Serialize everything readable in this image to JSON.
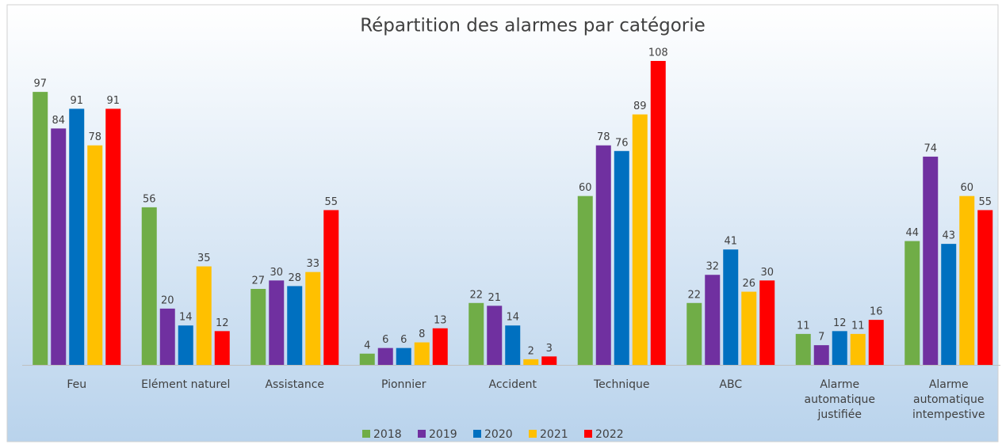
{
  "chart_data": {
    "type": "bar",
    "title": "Répartition des alarmes par catégorie",
    "categories": [
      "Feu",
      "Elément naturel",
      "Assistance",
      "Pionnier",
      "Accident",
      "Technique",
      "ABC",
      "Alarme automatique justifiée",
      "Alarme automatique intempestive"
    ],
    "series": [
      {
        "name": "2018",
        "color": "#70ad47",
        "values": [
          97,
          56,
          27,
          4,
          22,
          60,
          22,
          11,
          44
        ]
      },
      {
        "name": "2019",
        "color": "#7030a0",
        "values": [
          84,
          20,
          30,
          6,
          21,
          78,
          32,
          7,
          74
        ]
      },
      {
        "name": "2020",
        "color": "#0070c0",
        "values": [
          91,
          14,
          28,
          6,
          14,
          76,
          41,
          12,
          43
        ]
      },
      {
        "name": "2021",
        "color": "#ffc000",
        "values": [
          78,
          35,
          33,
          8,
          2,
          89,
          26,
          11,
          60
        ]
      },
      {
        "name": "2022",
        "color": "#ff0000",
        "values": [
          91,
          12,
          55,
          13,
          3,
          108,
          30,
          16,
          55
        ]
      }
    ],
    "legend": "bottom"
  }
}
